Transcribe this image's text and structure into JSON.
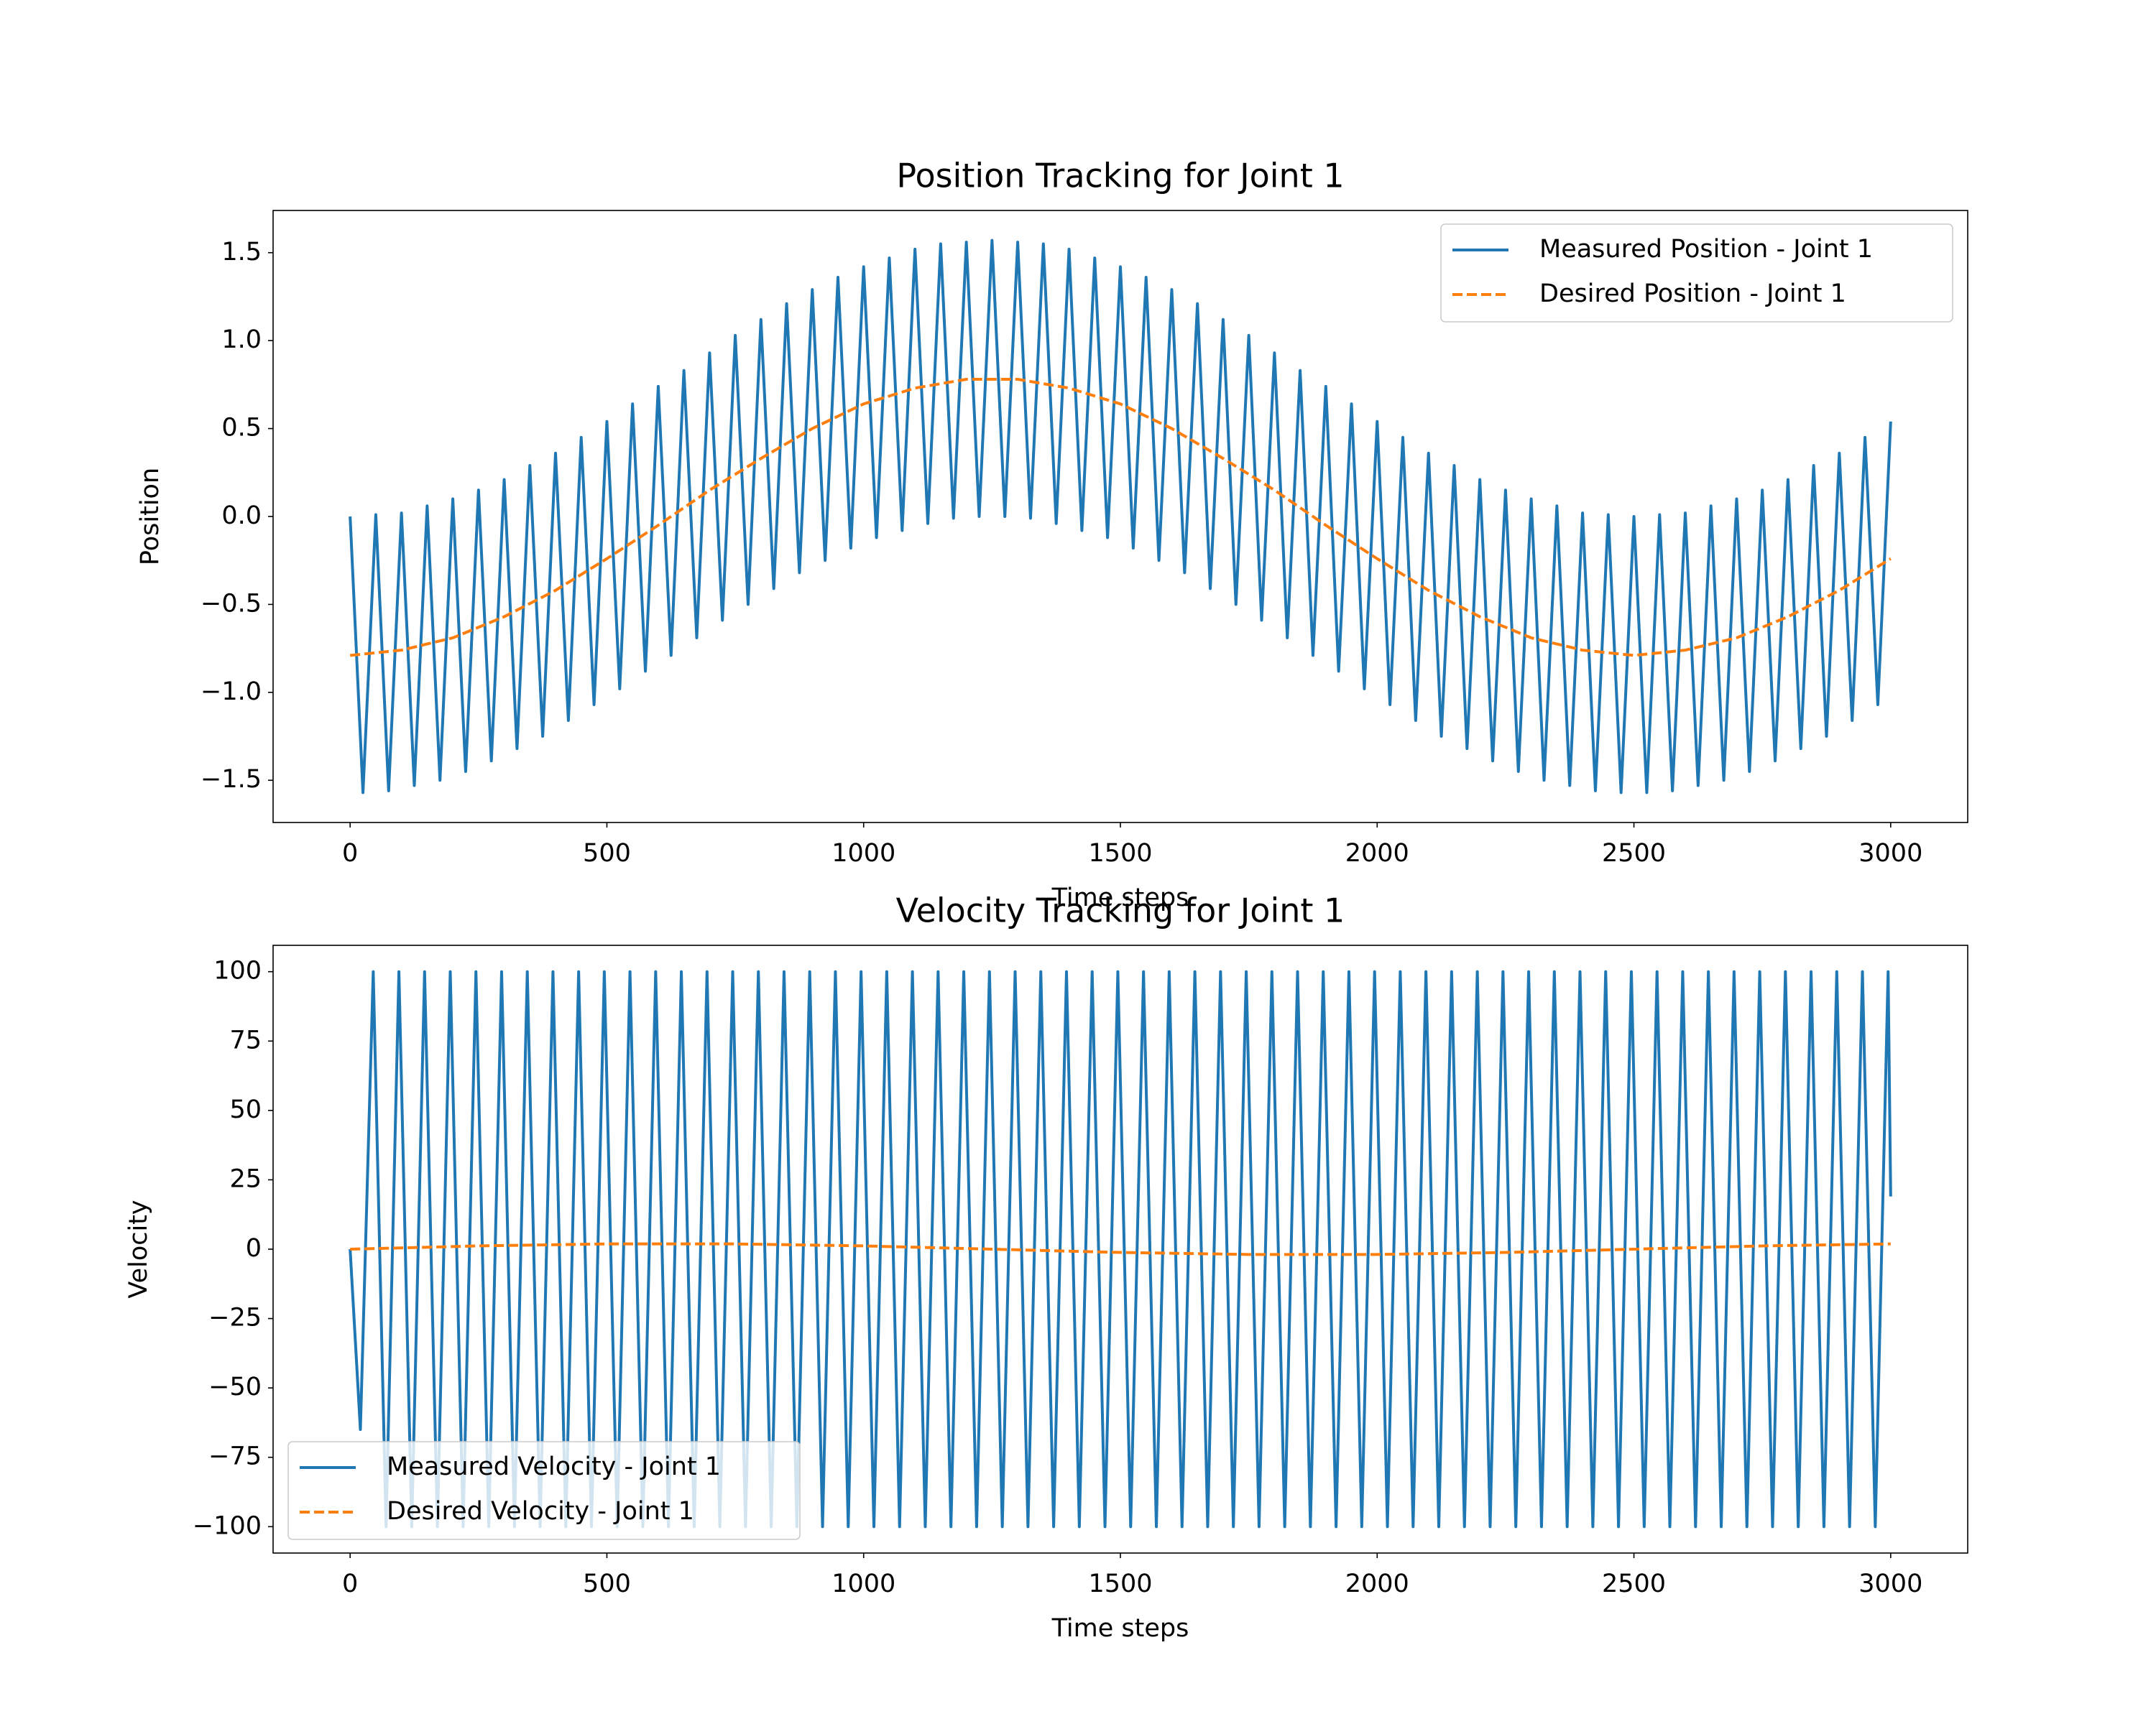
{
  "chart_data": [
    {
      "type": "line",
      "title": "Position Tracking for Joint 1",
      "xlabel": "Time steps",
      "ylabel": "Position",
      "xlim": [
        -150,
        3150
      ],
      "ylim": [
        -1.74,
        1.74
      ],
      "xticks": [
        0,
        500,
        1000,
        1500,
        2000,
        2500,
        3000
      ],
      "yticks": [
        {
          "value": -1.5,
          "label": "−1.5"
        },
        {
          "value": -1,
          "label": "−1.0"
        },
        {
          "value": -0.5,
          "label": "−0.5"
        },
        {
          "value": 0,
          "label": "0.0"
        },
        0.5,
        {
          "value": 1,
          "label": "1.0"
        },
        1.5
      ],
      "legend": "upper right",
      "series": [
        {
          "name": "Measured Position - Joint 1",
          "color": "#1f77b4",
          "linestyle": "solid",
          "x": [
            0,
            25,
            50,
            75,
            100,
            125,
            150,
            175,
            200,
            225,
            250,
            275,
            300,
            325,
            350,
            375,
            400,
            425,
            450,
            475,
            500,
            525,
            550,
            575,
            600,
            625,
            650,
            675,
            700,
            725,
            750,
            775,
            800,
            825,
            850,
            875,
            900,
            925,
            950,
            975,
            1000,
            1025,
            1050,
            1075,
            1100,
            1125,
            1150,
            1175,
            1200,
            1225,
            1250,
            1275,
            1300,
            1325,
            1350,
            1375,
            1400,
            1425,
            1450,
            1475,
            1500,
            1525,
            1550,
            1575,
            1600,
            1625,
            1650,
            1675,
            1700,
            1725,
            1750,
            1775,
            1800,
            1825,
            1850,
            1875,
            1900,
            1925,
            1950,
            1975,
            2000,
            2025,
            2050,
            2075,
            2100,
            2125,
            2150,
            2175,
            2200,
            2225,
            2250,
            2275,
            2300,
            2325,
            2350,
            2375,
            2400,
            2425,
            2450,
            2475,
            2500,
            2525,
            2550,
            2575,
            2600,
            2625,
            2650,
            2675,
            2700,
            2725,
            2750,
            2775,
            2800,
            2825,
            2850,
            2875,
            2900,
            2925,
            2950,
            2975,
            3000
          ],
          "values": [
            0,
            -1.57,
            0.01,
            -1.56,
            0.02,
            -1.53,
            0.06,
            -1.5,
            0.1,
            -1.45,
            0.15,
            -1.39,
            0.21,
            -1.32,
            0.29,
            -1.25,
            0.36,
            -1.16,
            0.45,
            -1.07,
            0.54,
            -0.98,
            0.64,
            -0.88,
            0.74,
            -0.79,
            0.83,
            -0.69,
            0.93,
            -0.59,
            1.03,
            -0.5,
            1.12,
            -0.41,
            1.21,
            -0.32,
            1.29,
            -0.25,
            1.36,
            -0.18,
            1.42,
            -0.12,
            1.47,
            -0.08,
            1.52,
            -0.04,
            1.55,
            -0.01,
            1.56,
            0,
            1.57,
            0,
            1.56,
            -0.01,
            1.55,
            -0.04,
            1.52,
            -0.08,
            1.47,
            -0.12,
            1.42,
            -0.18,
            1.36,
            -0.25,
            1.29,
            -0.32,
            1.21,
            -0.41,
            1.12,
            -0.5,
            1.03,
            -0.59,
            0.93,
            -0.69,
            0.83,
            -0.79,
            0.74,
            -0.88,
            0.64,
            -0.98,
            0.54,
            -1.07,
            0.45,
            -1.16,
            0.36,
            -1.25,
            0.29,
            -1.32,
            0.21,
            -1.39,
            0.15,
            -1.45,
            0.1,
            -1.5,
            0.06,
            -1.53,
            0.02,
            -1.56,
            0.01,
            -1.57,
            0,
            -1.57,
            0.01,
            -1.56,
            0.02,
            -1.53,
            0.06,
            -1.5,
            0.1,
            -1.45,
            0.15,
            -1.39,
            0.21,
            -1.32,
            0.29,
            -1.25,
            0.36,
            -1.16,
            0.45,
            -1.07,
            0.54
          ]
        },
        {
          "name": "Desired Position - Joint 1",
          "color": "#ff7f0e",
          "linestyle": "dashed",
          "x": [
            0,
            100,
            200,
            300,
            400,
            500,
            600,
            700,
            800,
            900,
            1000,
            1100,
            1200,
            1300,
            1400,
            1500,
            1600,
            1700,
            1800,
            1900,
            2000,
            2100,
            2200,
            2300,
            2400,
            2500,
            2600,
            2700,
            2800,
            2900,
            3000
          ],
          "values": [
            -0.79,
            -0.76,
            -0.69,
            -0.57,
            -0.42,
            -0.24,
            -0.05,
            0.15,
            0.33,
            0.5,
            0.64,
            0.73,
            0.78,
            0.78,
            0.73,
            0.64,
            0.5,
            0.33,
            0.15,
            -0.05,
            -0.24,
            -0.42,
            -0.57,
            -0.69,
            -0.76,
            -0.79,
            -0.76,
            -0.69,
            -0.57,
            -0.42,
            -0.24
          ]
        }
      ]
    },
    {
      "type": "line",
      "title": "Velocity Tracking for Joint 1",
      "xlabel": "Time steps",
      "ylabel": "Velocity",
      "xlim": [
        -150,
        3150
      ],
      "ylim": [
        -109.5,
        109.5
      ],
      "xticks": [
        0,
        500,
        1000,
        1500,
        2000,
        2500,
        3000
      ],
      "yticks": [
        {
          "value": -100,
          "label": "−100"
        },
        {
          "value": -75,
          "label": "−75"
        },
        {
          "value": -50,
          "label": "−50"
        },
        {
          "value": -25,
          "label": "−25"
        },
        0,
        25,
        50,
        75,
        100
      ],
      "legend": "lower left",
      "series": [
        {
          "name": "Measured Velocity - Joint 1",
          "color": "#1f77b4",
          "linestyle": "solid",
          "x": [
            0,
            20,
            45,
            70,
            95,
            120,
            145,
            170,
            195,
            220,
            245,
            270,
            295,
            320,
            345,
            370,
            395,
            420,
            445,
            470,
            495,
            520,
            545,
            570,
            595,
            620,
            645,
            670,
            695,
            720,
            745,
            770,
            795,
            820,
            845,
            870,
            895,
            920,
            945,
            970,
            995,
            1020,
            1045,
            1070,
            1095,
            1120,
            1145,
            1170,
            1195,
            1220,
            1245,
            1270,
            1295,
            1320,
            1345,
            1370,
            1395,
            1420,
            1445,
            1470,
            1495,
            1520,
            1545,
            1570,
            1595,
            1620,
            1645,
            1670,
            1695,
            1720,
            1745,
            1770,
            1795,
            1820,
            1845,
            1870,
            1895,
            1920,
            1945,
            1970,
            1995,
            2020,
            2045,
            2070,
            2095,
            2120,
            2145,
            2170,
            2195,
            2220,
            2245,
            2270,
            2295,
            2320,
            2345,
            2370,
            2395,
            2420,
            2445,
            2470,
            2495,
            2520,
            2545,
            2570,
            2595,
            2620,
            2645,
            2670,
            2695,
            2720,
            2745,
            2770,
            2795,
            2820,
            2845,
            2870,
            2895,
            2920,
            2945,
            2970,
            2995,
            3000
          ],
          "values": [
            0,
            -65,
            100,
            -100,
            100,
            -100,
            100,
            -100,
            100,
            -100,
            100,
            -100,
            100,
            -100,
            100,
            -100,
            100,
            -100,
            100,
            -100,
            100,
            -100,
            100,
            -100,
            100,
            -100,
            100,
            -100,
            100,
            -100,
            100,
            -100,
            100,
            -100,
            100,
            -100,
            100,
            -100,
            100,
            -100,
            100,
            -100,
            100,
            -100,
            100,
            -100,
            100,
            -100,
            100,
            -100,
            100,
            -100,
            100,
            -100,
            100,
            -100,
            100,
            -100,
            100,
            -100,
            100,
            -100,
            100,
            -100,
            100,
            -100,
            100,
            -100,
            100,
            -100,
            100,
            -100,
            100,
            -100,
            100,
            -100,
            100,
            -100,
            100,
            -100,
            100,
            -100,
            100,
            -100,
            100,
            -100,
            100,
            -100,
            100,
            -100,
            100,
            -100,
            100,
            -100,
            100,
            -100,
            100,
            -100,
            100,
            -100,
            100,
            -100,
            100,
            -100,
            100,
            -100,
            100,
            -100,
            100,
            -100,
            100,
            -100,
            100,
            -100,
            100,
            -100,
            100,
            -100,
            100,
            -100,
            100,
            19
          ]
        },
        {
          "name": "Desired Velocity - Joint 1",
          "color": "#ff7f0e",
          "linestyle": "dashed",
          "x": [
            0,
            250,
            500,
            750,
            1000,
            1250,
            1500,
            1750,
            2000,
            2250,
            2500,
            2750,
            3000
          ],
          "values": [
            0,
            1.18,
            1.9,
            1.9,
            1.18,
            0,
            -1.18,
            -1.9,
            -1.9,
            -1.18,
            0,
            1.18,
            1.9
          ]
        }
      ]
    }
  ]
}
